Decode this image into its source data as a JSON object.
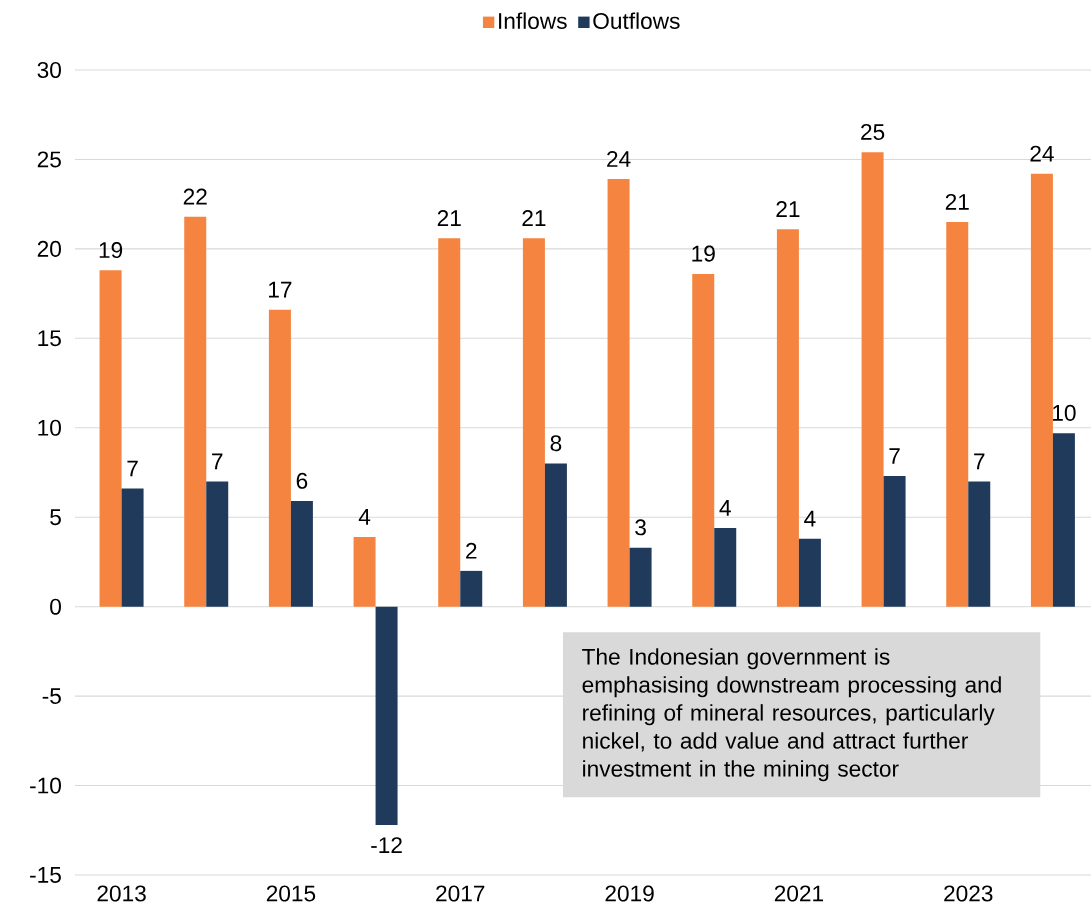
{
  "chart_data": {
    "type": "bar",
    "categories": [
      "2013",
      null,
      "2015",
      null,
      "2017",
      null,
      "2019",
      null,
      "2021",
      null,
      "2023",
      null
    ],
    "series": [
      {
        "name": "Inflows",
        "color": "#f4843f",
        "values": [
          18.8,
          21.8,
          16.6,
          3.9,
          20.6,
          20.6,
          23.9,
          18.6,
          21.1,
          25.4,
          21.5,
          24.2
        ],
        "value_labels": [
          "19",
          "22",
          "17",
          "4",
          "21",
          "21",
          "24",
          "19",
          "21",
          "25",
          "21",
          "24"
        ]
      },
      {
        "name": "Outflows",
        "color": "#1f3a5a",
        "values": [
          6.6,
          7.0,
          5.9,
          -12.2,
          2.0,
          8.0,
          3.3,
          4.4,
          3.8,
          7.3,
          7.0,
          9.7
        ],
        "value_labels": [
          "7",
          "7",
          "6",
          "-12",
          "2",
          "8",
          "3",
          "4",
          "4",
          "7",
          "7",
          "10"
        ]
      }
    ],
    "ylim": [
      -15,
      30
    ],
    "yticks": [
      -15,
      -10,
      -5,
      0,
      5,
      10,
      15,
      20,
      25,
      30
    ],
    "grid": "y",
    "legend": "top",
    "annotations": [
      "The Indonesian government is emphasising downstream processing and refining of mineral resources, particularly nickel, to add value and attract further investment in the mining sector"
    ]
  }
}
